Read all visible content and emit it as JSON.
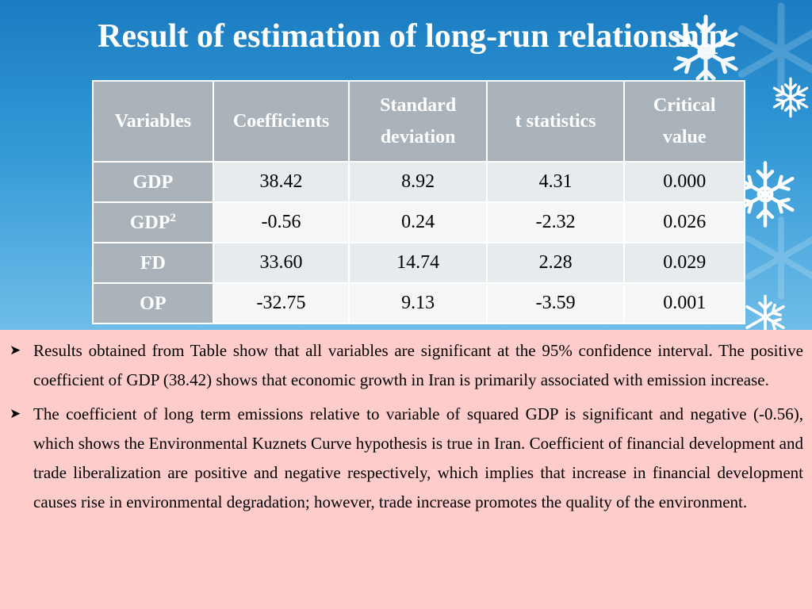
{
  "slide": {
    "title": "Result of estimation of long-run relationship"
  },
  "table": {
    "headers": [
      "Variables",
      "Coefficients",
      "Standard deviation",
      "t statistics",
      "Critical value"
    ],
    "rows": [
      {
        "variable": "GDP",
        "superscript": "",
        "coefficient": "38.42",
        "std_dev": "8.92",
        "t_stat": "4.31",
        "critical": "0.000"
      },
      {
        "variable": "GDP",
        "superscript": "2",
        "coefficient": "-0.56",
        "std_dev": "0.24",
        "t_stat": "-2.32",
        "critical": "0.026"
      },
      {
        "variable": "FD",
        "superscript": "",
        "coefficient": "33.60",
        "std_dev": "14.74",
        "t_stat": "2.28",
        "critical": "0.029"
      },
      {
        "variable": "OP",
        "superscript": "",
        "coefficient": "-32.75",
        "std_dev": "9.13",
        "t_stat": "-3.59",
        "critical": "0.001"
      }
    ]
  },
  "bullets": [
    "Results obtained from Table show that all variables are significant at the 95% confidence interval. The positive coefficient of GDP (38.42) shows that economic growth in Iran is primarily associated with emission increase.",
    "The coefficient of long term emissions relative to variable of squared GDP is significant and negative (-0.56), which shows the Environmental Kuznets Curve hypothesis is true in Iran. Coefficient of financial development and trade liberalization are positive and negative respectively, which implies that increase in financial development causes rise in environmental degradation; however, trade increase promotes the quality of the environment."
  ],
  "icons": {
    "bullet_marker": "arrowhead-bullet-icon",
    "decoration": "snowflake-icon"
  },
  "colors": {
    "background_top": "#1a7cc1",
    "text_box": "#ffcccc",
    "header_cell": "#a9b3b9",
    "row_light": "#e6ebed",
    "row_lighter": "#f4f6f7"
  }
}
